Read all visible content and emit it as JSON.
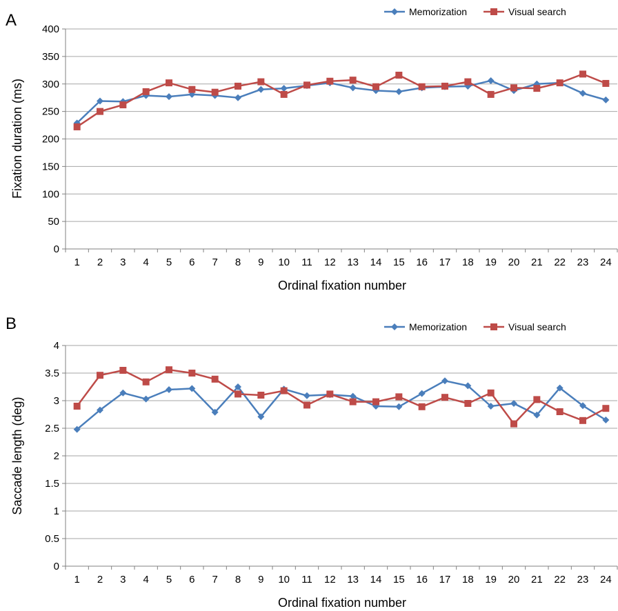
{
  "chart_data": [
    {
      "type": "line",
      "panel_label": "A",
      "xlabel": "Ordinal fixation number",
      "ylabel": "Fixation duration (ms)",
      "ylim": [
        0,
        400
      ],
      "ytick_step": 50,
      "grid": true,
      "legend_position": "top-right",
      "categories": [
        "1",
        "2",
        "3",
        "4",
        "5",
        "6",
        "7",
        "8",
        "9",
        "10",
        "11",
        "12",
        "13",
        "14",
        "15",
        "16",
        "17",
        "18",
        "19",
        "20",
        "21",
        "22",
        "23",
        "24"
      ],
      "series": [
        {
          "name": "Memorization",
          "color": "#4a7ebb",
          "marker": "diamond",
          "values": [
            229,
            269,
            268,
            279,
            277,
            281,
            279,
            275,
            290,
            292,
            297,
            302,
            293,
            288,
            286,
            293,
            295,
            296,
            306,
            288,
            300,
            302,
            283,
            271
          ]
        },
        {
          "name": "Visual search",
          "color": "#be4b48",
          "marker": "square",
          "values": [
            222,
            250,
            262,
            286,
            302,
            290,
            285,
            296,
            304,
            281,
            298,
            305,
            307,
            295,
            316,
            295,
            296,
            304,
            281,
            293,
            292,
            302,
            318,
            301
          ]
        }
      ]
    },
    {
      "type": "line",
      "panel_label": "B",
      "xlabel": "Ordinal fixation number",
      "ylabel": "Saccade length (deg)",
      "ylim": [
        0,
        4
      ],
      "ytick_step": 0.5,
      "grid": true,
      "legend_position": "top-right",
      "categories": [
        "1",
        "2",
        "3",
        "4",
        "5",
        "6",
        "7",
        "8",
        "9",
        "10",
        "11",
        "12",
        "13",
        "14",
        "15",
        "16",
        "17",
        "18",
        "19",
        "20",
        "21",
        "22",
        "23",
        "24"
      ],
      "series": [
        {
          "name": "Memorization",
          "color": "#4a7ebb",
          "marker": "diamond",
          "values": [
            2.48,
            2.83,
            3.14,
            3.03,
            3.2,
            3.22,
            2.79,
            3.25,
            2.71,
            3.21,
            3.09,
            3.11,
            3.08,
            2.9,
            2.89,
            3.13,
            3.36,
            3.27,
            2.9,
            2.95,
            2.74,
            3.23,
            2.91,
            2.65
          ]
        },
        {
          "name": "Visual search",
          "color": "#be4b48",
          "marker": "square",
          "values": [
            2.9,
            3.46,
            3.55,
            3.34,
            3.56,
            3.5,
            3.39,
            3.12,
            3.1,
            3.18,
            2.92,
            3.12,
            2.98,
            2.98,
            3.07,
            2.89,
            3.06,
            2.95,
            3.14,
            2.58,
            3.02,
            2.8,
            2.64,
            2.86
          ]
        }
      ]
    }
  ]
}
